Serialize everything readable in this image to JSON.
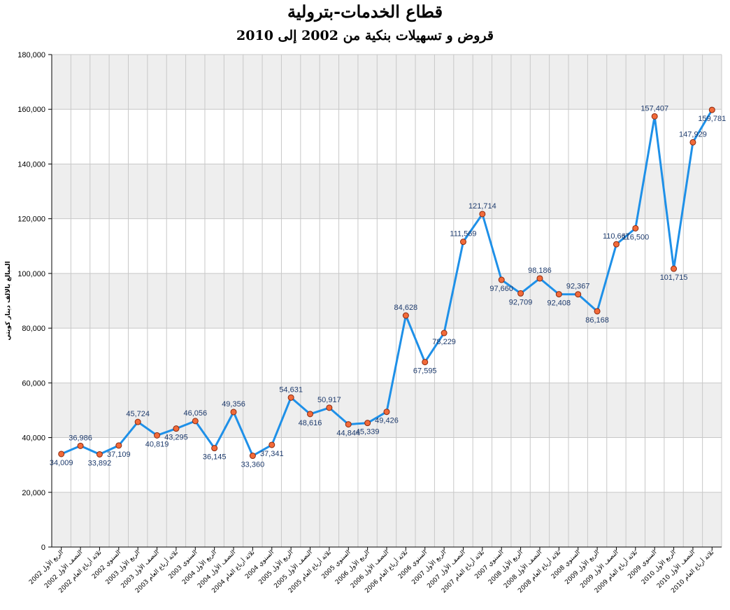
{
  "chart_data": {
    "type": "line",
    "title": "قطاع الخدمات-بترولية",
    "subtitle": "قروض و تسهيلات بنكية من 2002 إلى 2010",
    "ylabel": "المبالغ بالالف دينار كويتي",
    "xlabel": "",
    "ylim": [
      0,
      180000
    ],
    "yticks": [
      "0",
      "20,000",
      "40,000",
      "60,000",
      "80,000",
      "100,000",
      "120,000",
      "140,000",
      "160,000",
      "180,000"
    ],
    "grid": true,
    "legend": "none",
    "colors": {
      "line": "#1e90e8",
      "marker_fill": "#f26b3a",
      "marker_stroke": "#8b2a10",
      "band": "#eeeeee",
      "grid": "#c8c8c8"
    },
    "categories": [
      "الربع الأول 2002",
      "النصف الأول 2002",
      "ثلاثة أرباع العام 2002",
      "السنوي 2002",
      "الربع الأول 2003",
      "النصف الأول 2003",
      "ثلاثة أرباع العام 2003",
      "السنوي 2003",
      "الربع الأول 2004",
      "النصف الأول 2004",
      "ثلاثة أرباع العام 2004",
      "السنوي 2004",
      "الربع الأول 2005",
      "النصف الأول 2005",
      "ثلاثة أرباع العام 2005",
      "السنوي 2005",
      "الربع الأول 2006",
      "النصف الأول 2006",
      "ثلاثة أرباع العام 2006",
      "السنوي 2006",
      "الربع الأول 2007",
      "النصف الأول 2007",
      "ثلاثة أرباع العام 2007",
      "السنوي 2007",
      "الربع الأول 2008",
      "النصف الأول 2008",
      "ثلاثة أرباع العام 2008",
      "السنوي 2008",
      "الربع الأول 2009",
      "النصف الأول 2009",
      "ثلاثة أرباع العام 2009",
      "السنوي 2009",
      "الربع الأول 2010",
      "النصف الأول 2010",
      "ثلاثة أرباع العام 2010"
    ],
    "values": [
      34009,
      36986,
      33892,
      37109,
      45724,
      40819,
      43295,
      46056,
      36145,
      49356,
      33360,
      37341,
      54631,
      48616,
      50917,
      44844,
      45339,
      49426,
      84628,
      67595,
      78229,
      111569,
      121714,
      97660,
      92709,
      98186,
      92408,
      92367,
      86168,
      110667,
      116500,
      157407,
      101715,
      147929,
      159781
    ],
    "data_labels": [
      "34,009",
      "36,986",
      "33,892",
      "37,109",
      "45,724",
      "40,819",
      "43,295",
      "46,056",
      "36,145",
      "49,356",
      "33,360",
      "37,341",
      "54,631",
      "48,616",
      "50,917",
      "44,844",
      "45,339",
      "49,426",
      "84,628",
      "67,595",
      "78,229",
      "111,569",
      "121,714",
      "97,660",
      "92,709",
      "98,186",
      "92,408",
      "92,367",
      "86,168",
      "110,667",
      "116,500",
      "157,407",
      "101,715",
      "147,929",
      "159,781"
    ]
  }
}
